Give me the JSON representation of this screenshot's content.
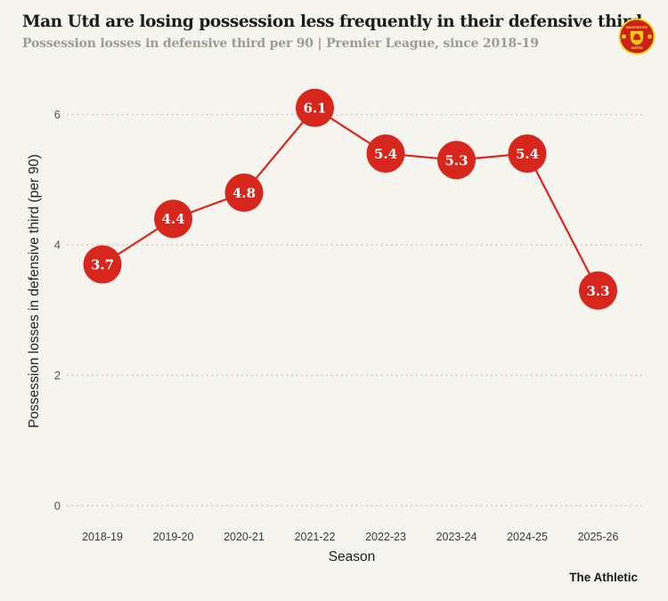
{
  "colors": {
    "background": "#f5f4ee",
    "accent_red": "#d7271d",
    "grid": "#c8c7c0",
    "title_text": "#1c1c1a",
    "subtitle_text": "#9c9b95",
    "axis_text": "#3a3a3a",
    "tick_text": "#55554f",
    "point_label_text": "#ffffff",
    "credit_text": "#1a1a1a",
    "crest_gold": "#f7d118",
    "crest_red": "#cf2013"
  },
  "header": {
    "title": "Man Utd are losing possession less frequently in their defensive third",
    "subtitle": "Possession losses in defensive third  per 90 | Premier League, since 2018-19",
    "crest": {
      "club": "Manchester United",
      "text_top": "MANCHESTER",
      "text_bottom": "UNITED"
    }
  },
  "chart_data": {
    "type": "line",
    "title": "Man Utd are losing possession less frequently in their defensive third",
    "subtitle": "Possession losses in defensive third per 90 | Premier League, since 2018-19",
    "categories": [
      "2018-19",
      "2019-20",
      "2020-21",
      "2021-22",
      "2022-23",
      "2023-24",
      "2024-25",
      "2025-26"
    ],
    "values": [
      3.7,
      4.4,
      4.8,
      6.1,
      5.4,
      5.3,
      5.4,
      3.3
    ],
    "series": [
      {
        "name": "Possession losses in defensive third per 90",
        "values": [
          3.7,
          4.4,
          4.8,
          6.1,
          5.4,
          5.3,
          5.4,
          3.3
        ]
      }
    ],
    "xlabel": "Season",
    "ylabel": "Possession losses in defensive third (per 90)",
    "yticks": [
      0,
      2,
      4,
      6
    ],
    "ylim": [
      0,
      6.6
    ],
    "grid": "horizontal-dotted",
    "legend": "none",
    "marker": "large-circle-with-value-label"
  },
  "footer": {
    "credit": "The Athletic"
  }
}
